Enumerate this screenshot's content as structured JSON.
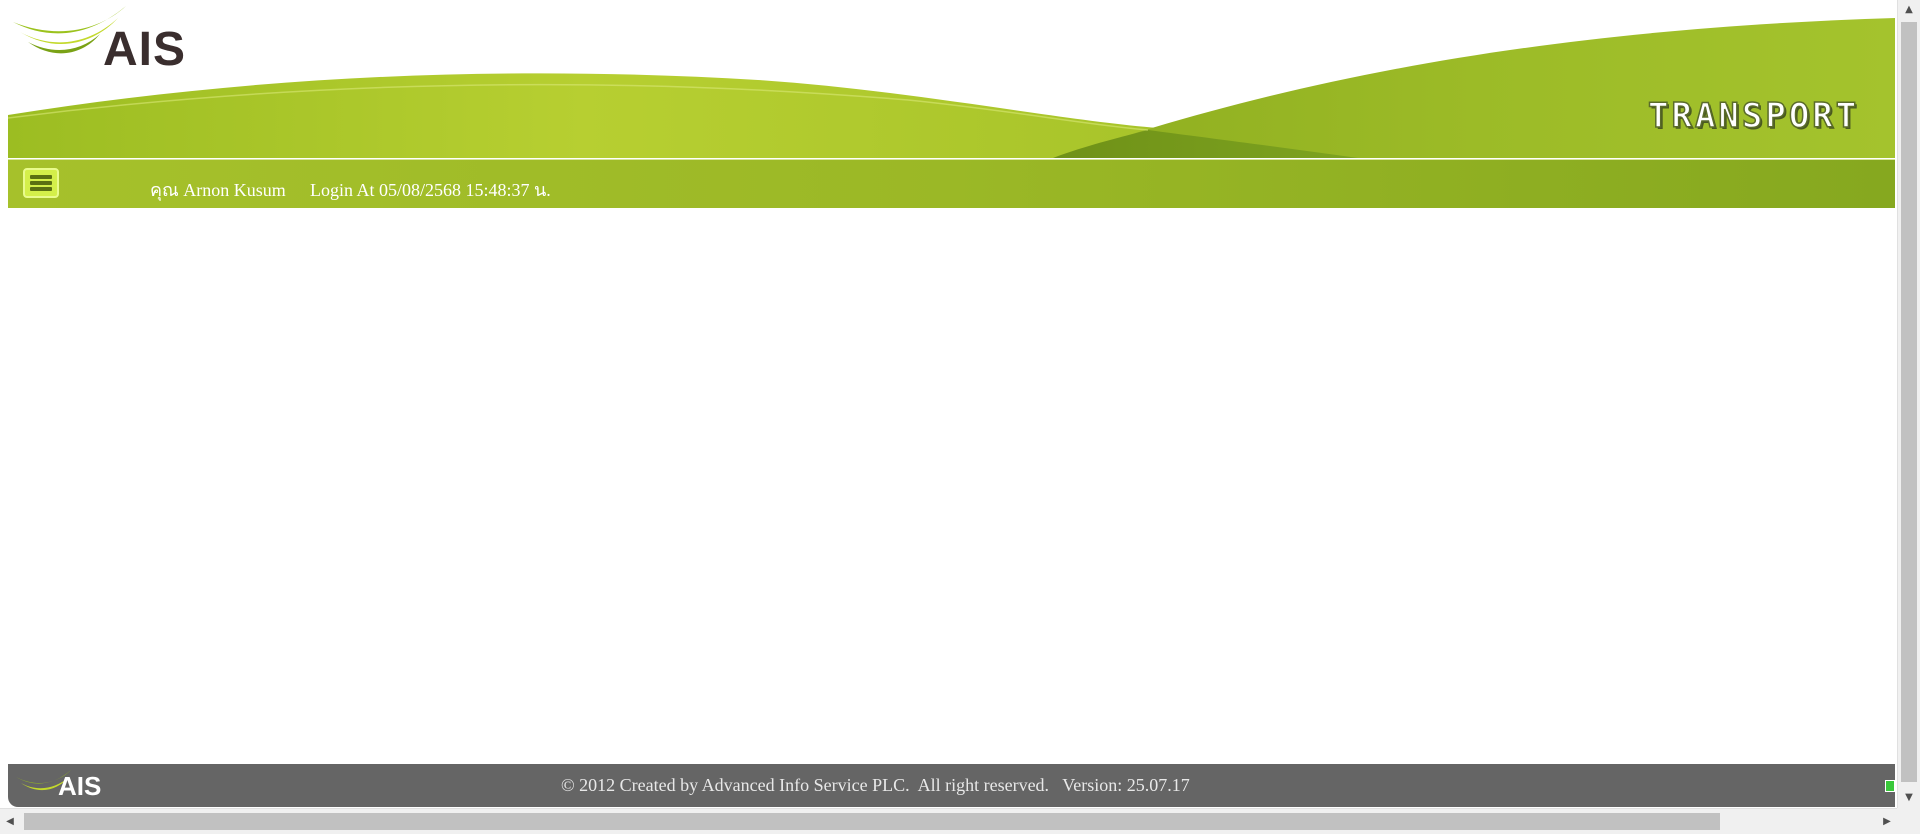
{
  "header": {
    "logo_text": "AIS",
    "app_title": "TRANSPORT"
  },
  "navbar": {
    "menu_icon": "hamburger-menu-icon",
    "user_name": "คุณ Arnon Kusum",
    "login_info": "Login At 05/08/2568 15:48:37 น."
  },
  "footer": {
    "logo_text": "AIS",
    "copyright": "© 2012 Created by Advanced Info Service PLC.  All right reserved.   Version: 25.07.17"
  },
  "colors": {
    "brand_green": "#a6c12b",
    "brand_dark_green": "#6e8f14",
    "footer_gray": "#656565",
    "logo_dark": "#3a2e2e"
  },
  "scrollbars": {
    "up_arrow": "▲",
    "down_arrow": "▼",
    "left_arrow": "◀",
    "right_arrow": "▶"
  }
}
